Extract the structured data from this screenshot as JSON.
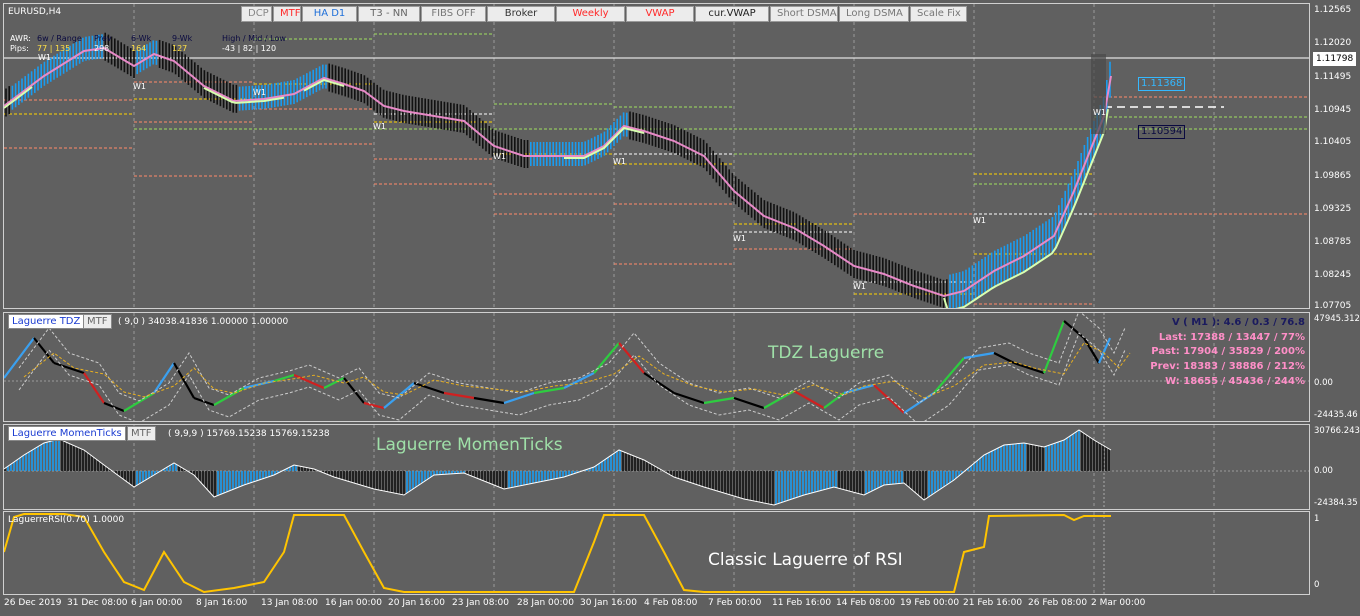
{
  "chart": {
    "symbol": "EURUSD,H4",
    "buttons": [
      {
        "label": "DCP",
        "color": "#888888"
      },
      {
        "label": "MTF",
        "color": "#ff2a2a"
      },
      {
        "label": "HA D1",
        "color": "#1e6fd9"
      },
      {
        "label": "T3 - NN",
        "color": "#666666"
      },
      {
        "label": "FIBS OFF",
        "color": "#777777"
      },
      {
        "label": "Broker",
        "color": "#333333"
      },
      {
        "label": "Weekly",
        "color": "#ff2a2a"
      },
      {
        "label": "VWAP",
        "color": "#ff2a2a"
      },
      {
        "label": "cur.VWAP",
        "color": "#222222"
      },
      {
        "label": "Short DSMA",
        "color": "#777777"
      },
      {
        "label": "Long DSMA",
        "color": "#777777"
      },
      {
        "label": "Scale Fix",
        "color": "#777777"
      }
    ],
    "awr": {
      "row1_label": "AWR:",
      "row2_label": "Pips:",
      "col1_head": "6w / Range",
      "col1_val": "77 | 135",
      "col2_head": "Prev",
      "col2_val": "298",
      "col3_head": "6-Wk",
      "col3_val": "164",
      "col4_head": "9-Wk",
      "col4_val": "127",
      "col5_head": "High / Mid / Low",
      "col5_val": "-43  |  82  |  120"
    },
    "price_ticks": [
      "1.12565",
      "1.12020",
      "1.11798",
      "1.11495",
      "1.10945",
      "1.10405",
      "1.09865",
      "1.09325",
      "1.08785",
      "1.08245",
      "1.07705"
    ],
    "current_price": "1.11798",
    "price_tag_upper": "1.11368",
    "price_tag_lower": "1.10594",
    "week_marker": "W1"
  },
  "tdz": {
    "name": "Laguerre TDZ",
    "mtf": "MTF",
    "params": "( 9,0 ) 34038.41836 1.00000 1.00000",
    "title": "TDZ Laguerre",
    "ticks": [
      "47945.312",
      "0.00",
      "-24435.46"
    ],
    "stats": [
      {
        "text": "V ( M1 ): 4.6 / 0.3 / 76.8",
        "color": "#1a1a5e"
      },
      {
        "text": "Last: 17388 / 13447 / 77%",
        "color": "#ff8fc8"
      },
      {
        "text": "Past: 17904 / 35829 / 200%",
        "color": "#ff8fc8"
      },
      {
        "text": "Prev: 18383 / 38886 / 212%",
        "color": "#ff8fc8"
      },
      {
        "text": "W: 18655 / 45436 / 244%",
        "color": "#ff8fc8"
      }
    ]
  },
  "momenticks": {
    "name": "Laguerre MomenTicks",
    "mtf": "MTF",
    "params": "( 9,9,9 ) 15769.15238 15769.15238",
    "title": "Laguerre MomenTicks",
    "ticks": [
      "30766.243",
      "0.00",
      "-24384.35"
    ]
  },
  "rsi": {
    "name": "LaguerreRSI(0.70) 1.0000",
    "title": "Classic Laguerre of RSI",
    "ticks": [
      "1",
      "0"
    ]
  },
  "dates": [
    "26 Dec 2019",
    "31 Dec 08:00",
    "6 Jan 00:00",
    "8 Jan 16:00",
    "13 Jan 08:00",
    "16 Jan 00:00",
    "20 Jan 16:00",
    "23 Jan 08:00",
    "28 Jan 00:00",
    "30 Jan 16:00",
    "4 Feb 08:00",
    "7 Feb 00:00",
    "11 Feb 16:00",
    "14 Feb 08:00",
    "19 Feb 00:00",
    "21 Feb 16:00",
    "26 Feb 08:00",
    "2 Mar 00:00"
  ]
}
